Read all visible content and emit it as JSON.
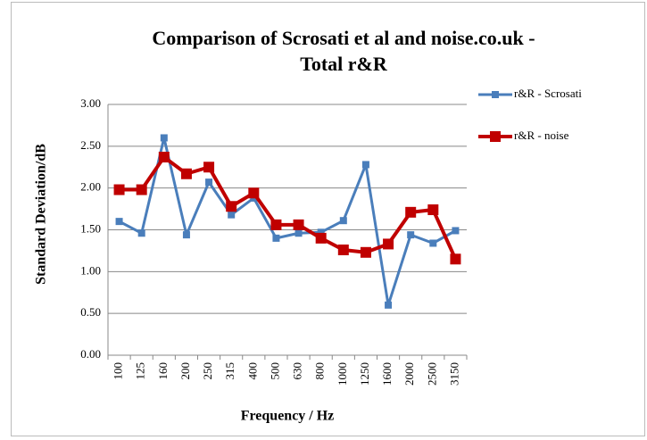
{
  "chart_data": {
    "type": "line",
    "title": "Comparison of Scrosati et al and noise.co.uk - Total r&R",
    "x_label": "Frequency / Hz",
    "y_label": "Standard Deviation/dB",
    "categories": [
      "100",
      "125",
      "160",
      "200",
      "250",
      "315",
      "400",
      "500",
      "630",
      "800",
      "1000",
      "1250",
      "1600",
      "2000",
      "2500",
      "3150"
    ],
    "series": [
      {
        "name": "r&R - Scrosati",
        "color": "#4a7ebb",
        "values": [
          1.6,
          1.46,
          2.6,
          1.44,
          2.07,
          1.68,
          1.88,
          1.4,
          1.46,
          1.47,
          1.61,
          2.28,
          0.6,
          1.44,
          1.34,
          1.49
        ]
      },
      {
        "name": "r&R - noise",
        "color": "#c00000",
        "values": [
          1.98,
          1.98,
          2.37,
          2.17,
          2.25,
          1.78,
          1.94,
          1.56,
          1.56,
          1.4,
          1.26,
          1.23,
          1.33,
          1.71,
          1.74,
          1.15
        ]
      }
    ],
    "ylim": [
      0,
      3
    ],
    "yticks": [
      {
        "value": 0,
        "label": "0.00"
      },
      {
        "value": 0.5,
        "label": "0.50"
      },
      {
        "value": 1,
        "label": "1.00"
      },
      {
        "value": 1.5,
        "label": "1.50"
      },
      {
        "value": 2,
        "label": "2.00"
      },
      {
        "value": 2.5,
        "label": "2.50"
      },
      {
        "value": 3,
        "label": "3.00"
      }
    ],
    "grid": true,
    "legend": "right"
  }
}
